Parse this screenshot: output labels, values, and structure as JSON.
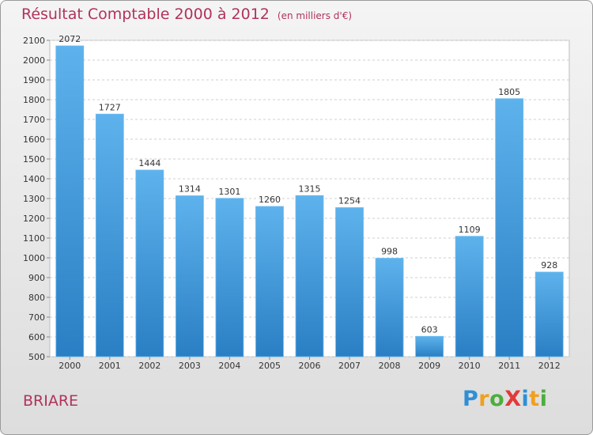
{
  "chart_data": {
    "type": "bar",
    "title": "Résultat Comptable 2000 à 2012",
    "subtitle": "(en milliers d'€)",
    "categories": [
      "2000",
      "2001",
      "2002",
      "2003",
      "2004",
      "2005",
      "2006",
      "2007",
      "2008",
      "2009",
      "2010",
      "2011",
      "2012"
    ],
    "values": [
      2072,
      1727,
      1444,
      1314,
      1301,
      1260,
      1315,
      1254,
      998,
      603,
      1109,
      1805,
      928
    ],
    "ylim": [
      500,
      2100
    ],
    "yticks": [
      500,
      600,
      700,
      800,
      900,
      1000,
      1100,
      1200,
      1300,
      1400,
      1500,
      1600,
      1700,
      1800,
      1900,
      2000,
      2100
    ],
    "grid": true,
    "xlabel": "",
    "ylabel": ""
  },
  "location": "BRIARE",
  "logo": {
    "text": "ProXiti",
    "letters": [
      {
        "ch": "P",
        "color": "#2e8fd6"
      },
      {
        "ch": "r",
        "color": "#f0a020"
      },
      {
        "ch": "o",
        "color": "#4cae3c"
      },
      {
        "ch": "X",
        "color": "#e23a3a"
      },
      {
        "ch": "i",
        "color": "#2e8fd6"
      },
      {
        "ch": "t",
        "color": "#f0a020"
      },
      {
        "ch": "i",
        "color": "#4cae3c"
      }
    ]
  },
  "colors": {
    "bar_top": "#5eb2ec",
    "bar_bottom": "#2a7fc4",
    "accent": "#b0335a"
  }
}
